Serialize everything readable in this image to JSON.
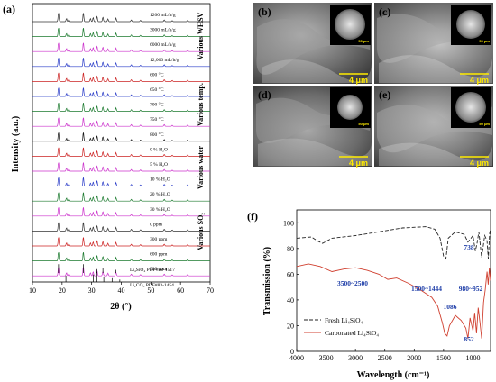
{
  "panel_a": {
    "label": "(a)",
    "xlabel": "2θ (°)",
    "ylabel": "Intensity (a.u.)",
    "xticks": [
      "10",
      "20",
      "30",
      "40",
      "50",
      "60",
      "70"
    ],
    "xlim": [
      10,
      70
    ],
    "groups": [
      "Various WHSV",
      "Various temp.",
      "Various water",
      "Various SO₂"
    ],
    "traces": [
      {
        "label": "1200 mL/h/g",
        "color": "#333333"
      },
      {
        "label": "3000 mL/h/g",
        "color": "#1b7a2e"
      },
      {
        "label": "6000 mL/h/g",
        "color": "#cc33cc"
      },
      {
        "label": "12,000 mL/h/g",
        "color": "#2a3cc8"
      },
      {
        "label": "600 °C",
        "color": "#cc2222"
      },
      {
        "label": "650 °C",
        "color": "#2a3cc8"
      },
      {
        "label": "700 °C",
        "color": "#1b7a2e"
      },
      {
        "label": "750 °C",
        "color": "#cc33cc"
      },
      {
        "label": "800 °C",
        "color": "#111111"
      },
      {
        "label": "0 % H₂O",
        "color": "#cc2222"
      },
      {
        "label": "5 % H₂O",
        "color": "#cc33cc"
      },
      {
        "label": "10 % H₂O",
        "color": "#2a3cc8"
      },
      {
        "label": "20 % H₂O",
        "color": "#1b7a2e"
      },
      {
        "label": "30 % H₂O",
        "color": "#cc33cc"
      },
      {
        "label": "0 ppm",
        "color": "#333333"
      },
      {
        "label": "300 ppm",
        "color": "#cc2222"
      },
      {
        "label": "600 ppm",
        "color": "#1b7a2e"
      },
      {
        "label": "900 ppm",
        "color": "#cc33cc"
      }
    ],
    "references": [
      "Li₄SiO₄ PDF#83-1517",
      "Li₂CO₃ PDF#83-1454"
    ]
  },
  "sem_panels": [
    {
      "label": "(b)",
      "scale": "4 μm",
      "inset_scale": "50 μm"
    },
    {
      "label": "(c)",
      "scale": "4 μm",
      "inset_scale": "50 μm"
    },
    {
      "label": "(d)",
      "scale": "4 μm",
      "inset_scale": "50 μm"
    },
    {
      "label": "(e)",
      "scale": "4 μm",
      "inset_scale": "50 μm"
    }
  ],
  "panel_f": {
    "label": "(f)",
    "xlabel": "Wavelength (cm⁻¹)",
    "ylabel": "Transmission (%)",
    "xticks": [
      "4000",
      "3500",
      "3000",
      "2500",
      "2000",
      "1500",
      "1000"
    ],
    "yticks": [
      "0",
      "20",
      "40",
      "60",
      "80",
      "100"
    ],
    "annotations": [
      "3500~2500",
      "1500~1444",
      "980~952",
      "738",
      "1086",
      "852"
    ],
    "legend": [
      {
        "label": "Fresh Li₄SiO₄",
        "color": "#222222",
        "style": "dashed"
      },
      {
        "label": "Carbonated Li₄SiO₄",
        "color": "#d04030",
        "style": "solid"
      }
    ]
  }
}
